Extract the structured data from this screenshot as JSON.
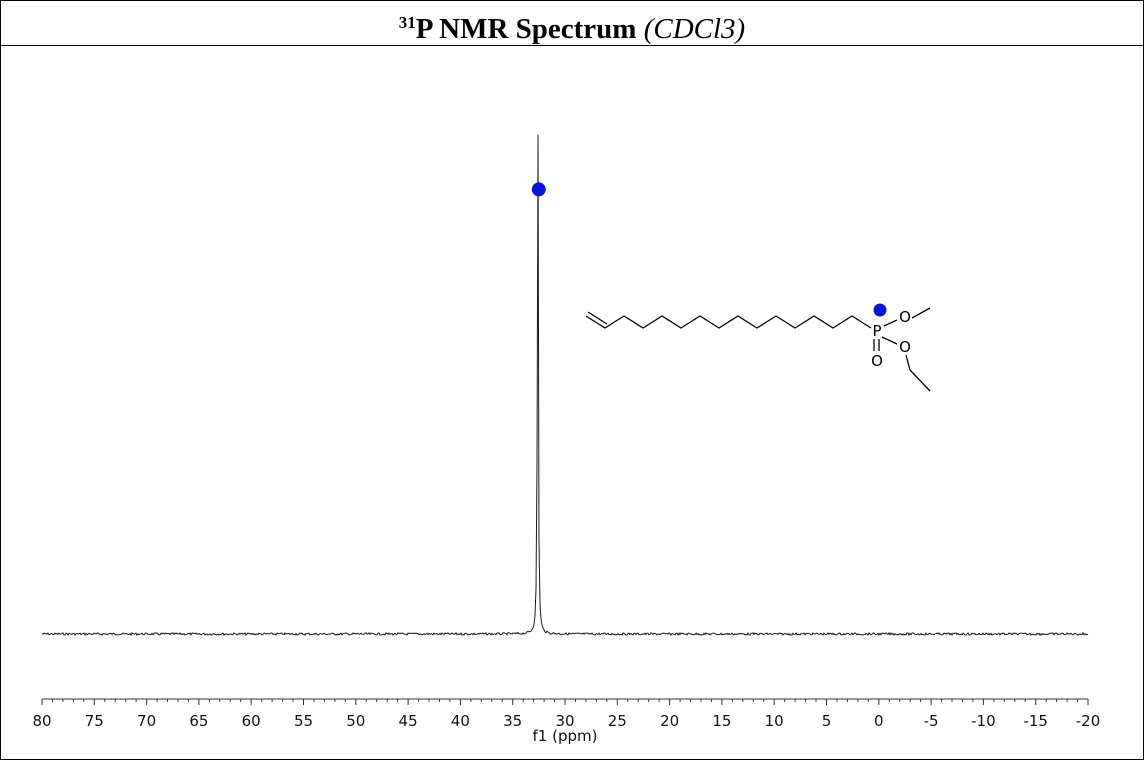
{
  "title": {
    "superscript": "31",
    "main": "P NMR Spectrum",
    "solvent": "(CDCl3)"
  },
  "chart_data": {
    "type": "line",
    "xlabel": "f1 (ppm)",
    "xlim": [
      80,
      -20
    ],
    "x_ticks": [
      80,
      75,
      70,
      65,
      60,
      55,
      50,
      45,
      40,
      35,
      30,
      25,
      20,
      15,
      10,
      5,
      0,
      -5,
      -10,
      -15,
      -20
    ],
    "x_tick_labels": [
      "80",
      "75",
      "70",
      "65",
      "60",
      "55",
      "50",
      "45",
      "40",
      "35",
      "30",
      "25",
      "20",
      "15",
      "10",
      "5",
      "0",
      "-5",
      "-10",
      "-15",
      "-20"
    ],
    "ylim": [
      0,
      1.0
    ],
    "grid": false,
    "peaks": [
      {
        "ppm": 32.6,
        "height": 1.0
      }
    ],
    "peak_marker": {
      "ppm": 32.6,
      "height": 0.78,
      "color": "#0a14d8"
    },
    "structure": {
      "atom_labels": [
        "P",
        "O",
        "O",
        "O"
      ],
      "marker_color": "#0a14d8"
    }
  }
}
